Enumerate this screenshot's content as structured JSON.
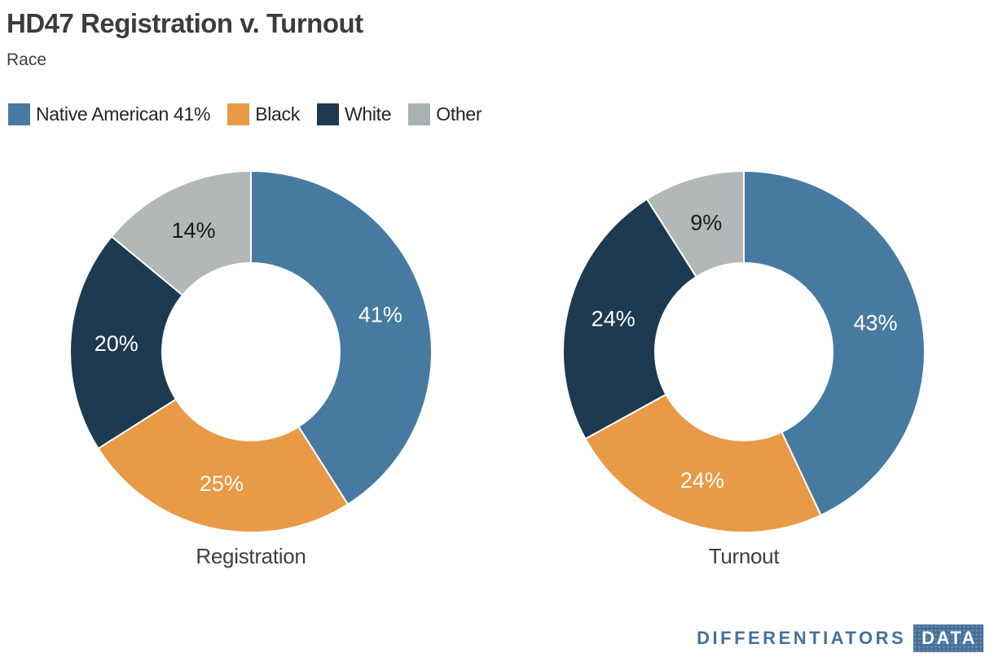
{
  "header": {
    "title": "HD47 Registration v. Turnout",
    "subtitle": "Race"
  },
  "legend": {
    "position": "top",
    "items": [
      {
        "label": "Native American 41%",
        "color": "#477aa1"
      },
      {
        "label": "Black",
        "color": "#e89a47"
      },
      {
        "label": "White",
        "color": "#1e3a50"
      },
      {
        "label": "Other",
        "color": "#a9b0b3"
      }
    ]
  },
  "chart_data": [
    {
      "type": "pie",
      "subtype": "donut",
      "title": "Registration",
      "categories": [
        "Native American",
        "Black",
        "White",
        "Other"
      ],
      "values": [
        41,
        25,
        20,
        14
      ],
      "labels": [
        "41%",
        "25%",
        "20%",
        "14%"
      ],
      "colors": [
        "#477aa1",
        "#e89a47",
        "#1e3a50",
        "#b2b7b8"
      ],
      "label_colors": [
        "#ffffff",
        "#ffffff",
        "#ffffff",
        "#1a1a1a"
      ],
      "start_angle_deg": 0,
      "direction": "clockwise",
      "inner_radius_ratio": 0.49,
      "grid": false
    },
    {
      "type": "pie",
      "subtype": "donut",
      "title": "Turnout",
      "categories": [
        "Native American",
        "Black",
        "White",
        "Other"
      ],
      "values": [
        43,
        24,
        24,
        9
      ],
      "labels": [
        "43%",
        "24%",
        "24%",
        "9%"
      ],
      "colors": [
        "#477aa1",
        "#e89a47",
        "#1e3a50",
        "#b2b7b8"
      ],
      "label_colors": [
        "#ffffff",
        "#ffffff",
        "#ffffff",
        "#1a1a1a"
      ],
      "start_angle_deg": 0,
      "direction": "clockwise",
      "inner_radius_ratio": 0.49,
      "grid": false
    }
  ],
  "footer": {
    "brand": "DIFFERENTIATORS",
    "brand_badge": "DATA",
    "brand_color": "#44719b"
  }
}
